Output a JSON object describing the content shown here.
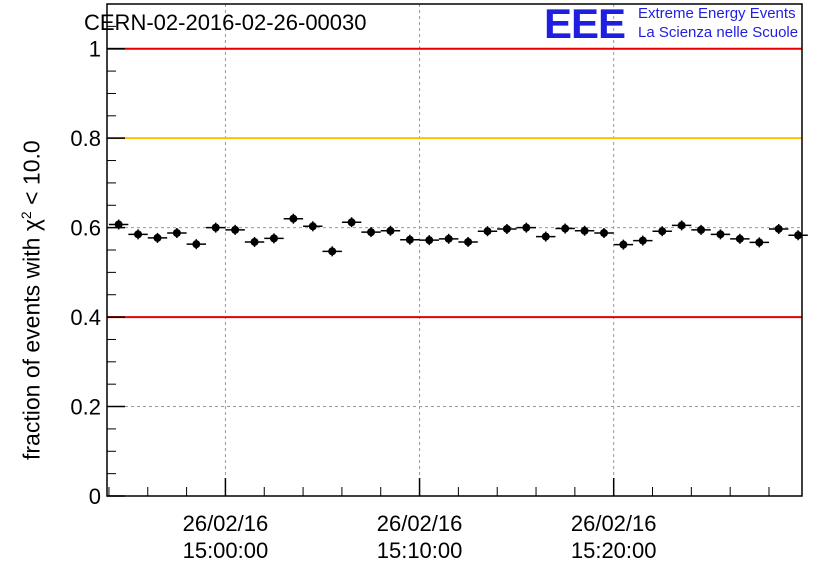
{
  "header": {
    "run_title": "CERN-02-2016-02-26-00030",
    "logo_text": "EEE",
    "logo_line1": "Extreme Energy Events",
    "logo_line2": "La Scienza nelle Scuole"
  },
  "colors": {
    "red_threshold": "#e60000",
    "yellow_threshold": "#ffc000",
    "points": "#000000",
    "grid": "#999999",
    "logo": "#1f1fe0"
  },
  "chart_data": {
    "type": "scatter",
    "title": "CERN-02-2016-02-26-00030",
    "ylabel_pre": "fraction of events with χ",
    "ylabel_sup": "2",
    "ylabel_post": " < 10.0",
    "ylim": [
      0,
      1.1
    ],
    "yticks": [
      0,
      0.2,
      0.4,
      0.6,
      0.8,
      1
    ],
    "ytick_labels": [
      "0",
      "0.2",
      "0.4",
      "0.6",
      "0.8",
      "1"
    ],
    "xticks": [
      {
        "t": 4.5,
        "date": "26/02/16",
        "time": "15:00:00"
      },
      {
        "t": 14.5,
        "date": "26/02/16",
        "time": "15:10:00"
      },
      {
        "t": 24.5,
        "date": "26/02/16",
        "time": "15:20:00"
      }
    ],
    "xlim": [
      -1.6,
      34.2
    ],
    "grid": true,
    "thresholds": [
      {
        "y": 1.0,
        "color": "red"
      },
      {
        "y": 0.8,
        "color": "yellow"
      },
      {
        "y": 0.4,
        "color": "red"
      }
    ],
    "points": [
      {
        "x": -1.0,
        "y": 0.607
      },
      {
        "x": 0.0,
        "y": 0.585
      },
      {
        "x": 1.0,
        "y": 0.577
      },
      {
        "x": 2.0,
        "y": 0.588
      },
      {
        "x": 3.0,
        "y": 0.563
      },
      {
        "x": 4.0,
        "y": 0.6
      },
      {
        "x": 5.0,
        "y": 0.595
      },
      {
        "x": 6.0,
        "y": 0.568
      },
      {
        "x": 7.0,
        "y": 0.576
      },
      {
        "x": 8.0,
        "y": 0.62
      },
      {
        "x": 9.0,
        "y": 0.603
      },
      {
        "x": 10.0,
        "y": 0.547
      },
      {
        "x": 11.0,
        "y": 0.612
      },
      {
        "x": 12.0,
        "y": 0.59
      },
      {
        "x": 13.0,
        "y": 0.593
      },
      {
        "x": 14.0,
        "y": 0.573
      },
      {
        "x": 15.0,
        "y": 0.572
      },
      {
        "x": 16.0,
        "y": 0.575
      },
      {
        "x": 17.0,
        "y": 0.568
      },
      {
        "x": 18.0,
        "y": 0.592
      },
      {
        "x": 19.0,
        "y": 0.597
      },
      {
        "x": 20.0,
        "y": 0.6
      },
      {
        "x": 21.0,
        "y": 0.58
      },
      {
        "x": 22.0,
        "y": 0.598
      },
      {
        "x": 23.0,
        "y": 0.593
      },
      {
        "x": 24.0,
        "y": 0.588
      },
      {
        "x": 25.0,
        "y": 0.562
      },
      {
        "x": 26.0,
        "y": 0.571
      },
      {
        "x": 27.0,
        "y": 0.592
      },
      {
        "x": 28.0,
        "y": 0.605
      },
      {
        "x": 29.0,
        "y": 0.595
      },
      {
        "x": 30.0,
        "y": 0.585
      },
      {
        "x": 31.0,
        "y": 0.575
      },
      {
        "x": 32.0,
        "y": 0.567
      },
      {
        "x": 33.0,
        "y": 0.597
      },
      {
        "x": 34.0,
        "y": 0.583
      }
    ]
  }
}
